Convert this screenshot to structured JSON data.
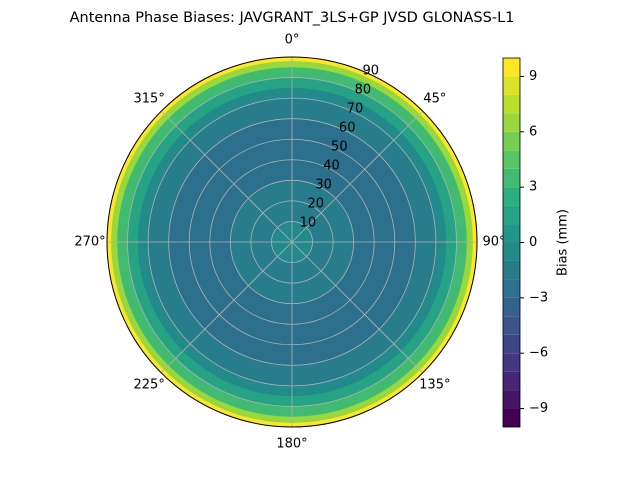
{
  "chart_data": {
    "type": "polar_contour",
    "title": "Antenna Phase Biases: JAVGRANT_3LS+GP JVSD GLONASS-L1",
    "x": [
      0,
      10,
      20,
      30,
      40,
      50,
      60,
      70,
      75,
      80,
      85,
      88,
      90
    ],
    "values": [
      0,
      -1,
      -1.5,
      -2,
      -2.5,
      -2.5,
      -2.5,
      -2,
      -1,
      1,
      3,
      6,
      9
    ],
    "ylim": [
      0,
      90
    ],
    "yticks": [
      10,
      20,
      30,
      40,
      50,
      60,
      70,
      80,
      90
    ],
    "xticks": [
      {
        "value": 0,
        "label": "0°"
      },
      {
        "value": 45,
        "label": "45°"
      },
      {
        "value": 90,
        "label": "90°"
      },
      {
        "value": 135,
        "label": "135°"
      },
      {
        "value": 180,
        "label": "180°"
      },
      {
        "value": 225,
        "label": "225°"
      },
      {
        "value": 270,
        "label": "270°"
      },
      {
        "value": 315,
        "label": "315°"
      }
    ],
    "grid": true,
    "colorbar_label": "Bias (mm)",
    "clim": [
      -10,
      10
    ],
    "levels": 20,
    "cticks": [
      {
        "value": -9,
        "label": "−9"
      },
      {
        "value": -6,
        "label": "−6"
      },
      {
        "value": -3,
        "label": "−3"
      },
      0,
      3,
      6,
      9
    ],
    "colormap": [
      "#440154",
      "#472d7b",
      "#3b528b",
      "#2c728e",
      "#21918c",
      "#28ae80",
      "#5ec962",
      "#addc30",
      "#fde725"
    ]
  }
}
